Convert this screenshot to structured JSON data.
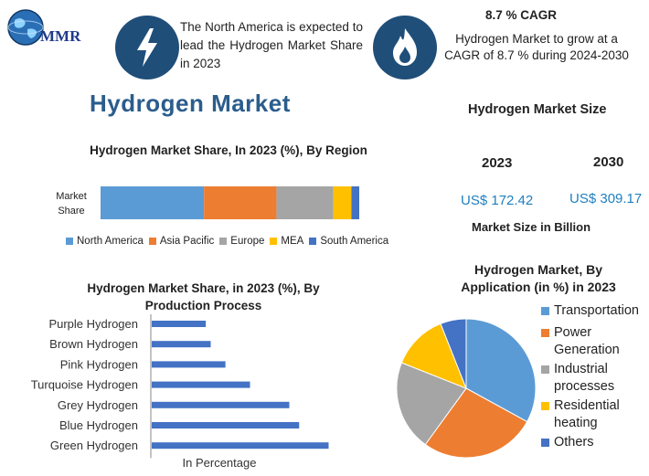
{
  "logo": {
    "text": "MMR"
  },
  "facts": {
    "north_america": "The North America is expected to lead the Hydrogen Market Share in 2023",
    "cagr_title": "8.7 % CAGR",
    "cagr_text": "Hydrogen Market to grow at a CAGR of 8.7 % during 2024-2030"
  },
  "main_title": "Hydrogen Market",
  "market_size": {
    "title": "Hydrogen Market Size",
    "years": [
      "2023",
      "2030"
    ],
    "values": [
      "US$ 172.42",
      "US$ 309.17"
    ],
    "note": "Market Size in Billion"
  },
  "colors": {
    "icon_bg": "#1f4e79",
    "blue": "#5b9bd5",
    "orange": "#ed7d31",
    "gray": "#a5a5a5",
    "yellow": "#ffc000",
    "dark_blue": "#4472c4",
    "accent_text": "#1f7fbf",
    "title_blue": "#2b5d8c"
  },
  "icons": [
    "globe-icon",
    "lightning-icon",
    "flame-icon"
  ],
  "chart_data": [
    {
      "type": "bar",
      "orientation": "horizontal-stacked",
      "title": "Hydrogen Market Share, In 2023 (%), By Region",
      "categories": [
        "Market Share"
      ],
      "category_label": "Market Share",
      "series": [
        {
          "name": "North America",
          "values": [
            40
          ]
        },
        {
          "name": "Asia Pacific",
          "values": [
            28
          ]
        },
        {
          "name": "Europe",
          "values": [
            22
          ]
        },
        {
          "name": "MEA",
          "values": [
            7
          ]
        },
        {
          "name": "South America",
          "values": [
            3
          ]
        }
      ],
      "legend": "bottom"
    },
    {
      "type": "bar",
      "orientation": "horizontal",
      "title": "Hydrogen Market Share, in 2023 (%), By Production Process",
      "categories": [
        "Purple Hydrogen",
        "Brown Hydrogen",
        "Pink Hydrogen",
        "Turquoise Hydrogen",
        "Grey Hydrogen",
        "Blue Hydrogen",
        "Green Hydrogen"
      ],
      "values": [
        5.5,
        6,
        7.5,
        10,
        14,
        15,
        18
      ],
      "xlabel": "In Percentage",
      "xlim": [
        0,
        20
      ]
    },
    {
      "type": "pie",
      "title": "Hydrogen Market, By Application (in %) in 2023",
      "categories": [
        "Transportation",
        "Power Generation",
        "Industrial processes",
        "Residential heating",
        "Others"
      ],
      "values": [
        33,
        27,
        21,
        13,
        6
      ],
      "legend": "right"
    }
  ]
}
